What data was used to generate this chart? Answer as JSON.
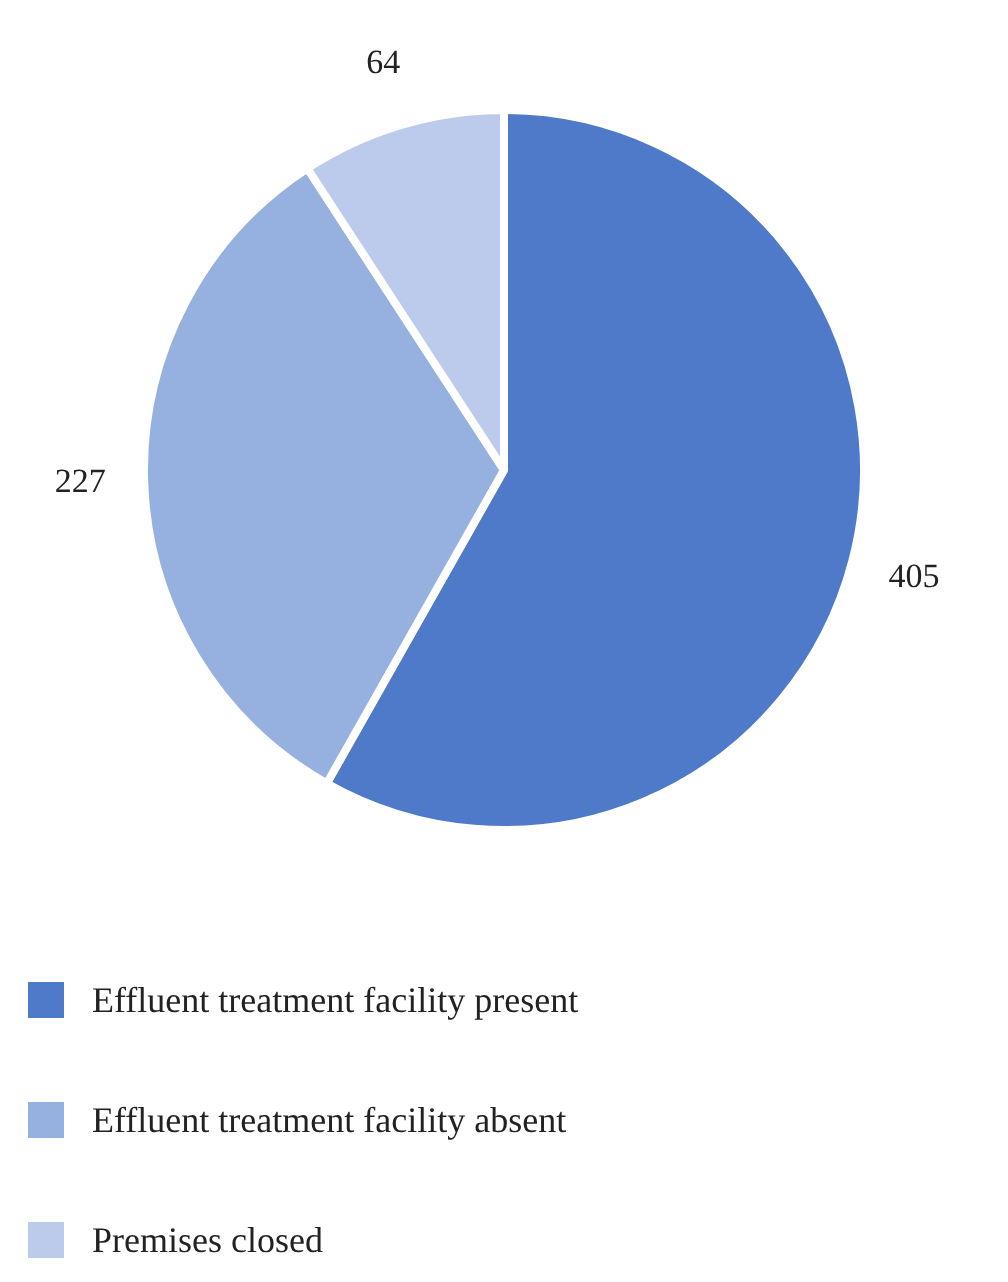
{
  "chart_data": {
    "type": "pie",
    "categories": [
      "Effluent treatment facility present",
      "Effluent treatment facility absent",
      "Premises closed"
    ],
    "values": [
      405,
      227,
      64
    ],
    "colors": [
      "#4f79c9",
      "#96b0df",
      "#bccbec"
    ],
    "data_labels": true,
    "legend": "bottom"
  }
}
